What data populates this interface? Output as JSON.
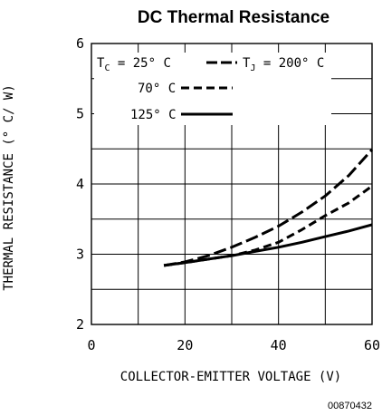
{
  "chart_data": {
    "type": "line",
    "title": "DC Thermal Resistance",
    "xlabel": "COLLECTOR-EMITTER VOLTAGE (V)",
    "ylabel": "THERMAL RESISTANCE (° C/ W)",
    "xlim": [
      0,
      60
    ],
    "ylim": [
      2,
      6
    ],
    "xticks": [
      0,
      20,
      40,
      60
    ],
    "yticks": [
      2,
      3,
      4,
      5,
      6
    ],
    "grid": true,
    "legend": {
      "title_main": "T",
      "title_sub": "C",
      "title_suffix": " = 25° C",
      "note_main": "T",
      "note_sub": "J",
      "note_suffix": " = 200° C",
      "placement": "top-left"
    },
    "series": [
      {
        "name": "25° C",
        "style": "long-dash",
        "color": "#000000",
        "x": [
          15.5,
          20,
          25,
          30,
          35,
          40,
          45,
          50,
          55,
          60
        ],
        "y": [
          2.84,
          2.89,
          2.98,
          3.1,
          3.24,
          3.4,
          3.6,
          3.83,
          4.12,
          4.49
        ]
      },
      {
        "name": "70° C",
        "style": "short-dash",
        "color": "#000000",
        "x": [
          15.5,
          20,
          25,
          30,
          35,
          40,
          45,
          50,
          55,
          60
        ],
        "y": [
          2.84,
          2.88,
          2.93,
          2.98,
          3.06,
          3.17,
          3.35,
          3.55,
          3.73,
          3.97
        ]
      },
      {
        "name": "125° C",
        "style": "solid",
        "color": "#000000",
        "x": [
          15.5,
          20,
          25,
          30,
          35,
          40,
          45,
          50,
          55,
          60
        ],
        "y": [
          2.84,
          2.88,
          2.93,
          2.98,
          3.04,
          3.1,
          3.17,
          3.25,
          3.33,
          3.42
        ]
      }
    ]
  },
  "figure_code": "00870432"
}
